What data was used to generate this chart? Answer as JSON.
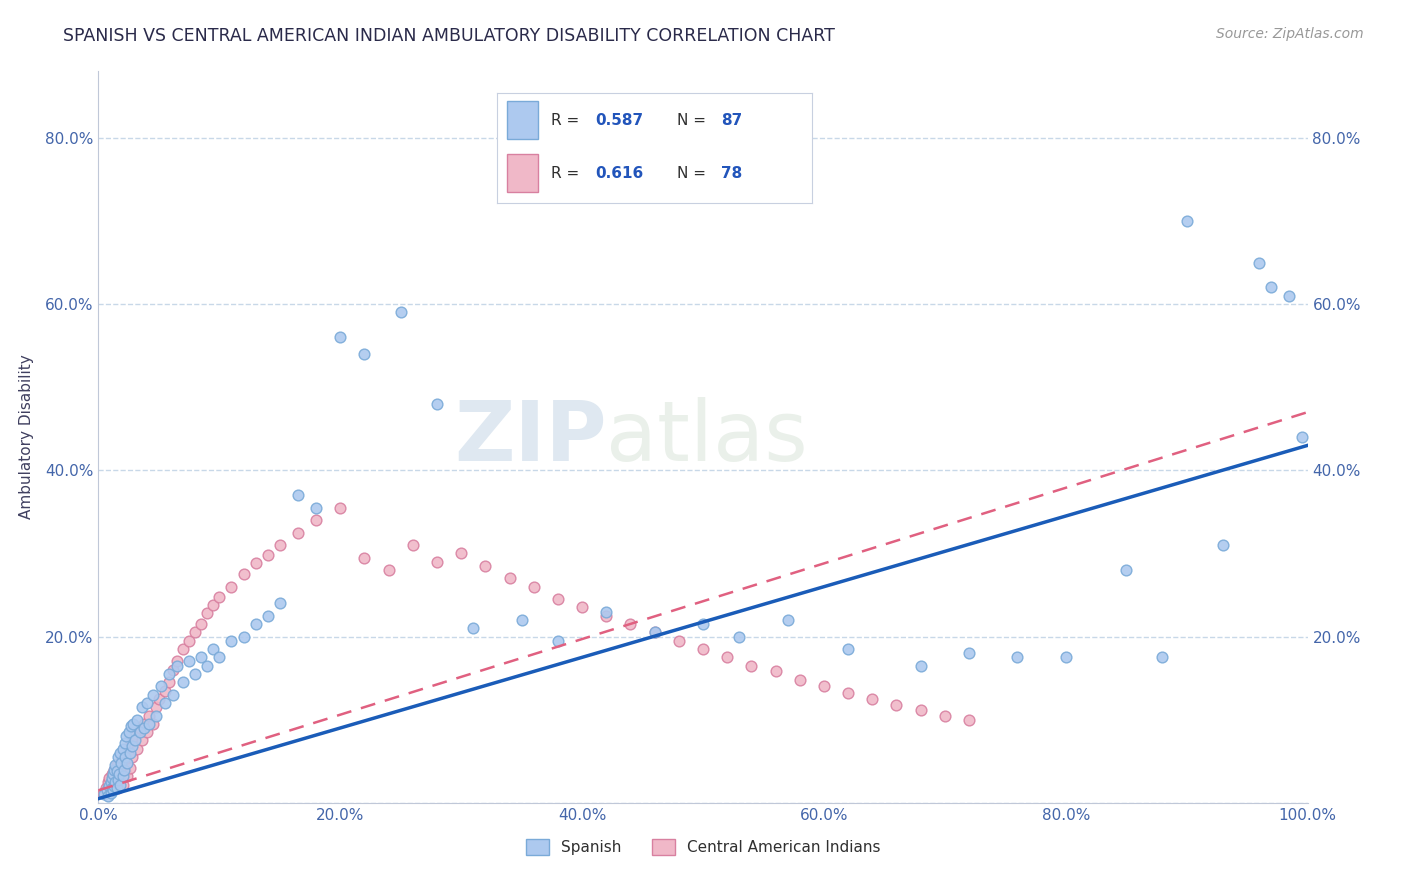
{
  "title": "SPANISH VS CENTRAL AMERICAN INDIAN AMBULATORY DISABILITY CORRELATION CHART",
  "source": "Source: ZipAtlas.com",
  "ylabel": "Ambulatory Disability",
  "xlim": [
    0.0,
    1.0
  ],
  "ylim": [
    0.0,
    0.88
  ],
  "xticks": [
    0.0,
    0.2,
    0.4,
    0.6,
    0.8,
    1.0
  ],
  "yticks": [
    0.0,
    0.2,
    0.4,
    0.6,
    0.8
  ],
  "xtick_labels": [
    "0.0%",
    "20.0%",
    "40.0%",
    "60.0%",
    "80.0%",
    "100.0%"
  ],
  "ytick_labels": [
    "",
    "20.0%",
    "40.0%",
    "60.0%",
    "80.0%"
  ],
  "background_color": "#ffffff",
  "grid_color": "#c8d8e8",
  "title_color": "#2a2a4a",
  "source_color": "#999999",
  "blue_scatter_color": "#adc9ef",
  "blue_edge_color": "#7aaad8",
  "pink_scatter_color": "#f0b8c8",
  "pink_edge_color": "#d880a0",
  "blue_line_color": "#1a5cb8",
  "pink_line_color": "#e06080",
  "scatter_size": 60,
  "R_blue": "0.587",
  "N_blue": "87",
  "R_pink": "0.616",
  "N_pink": "78",
  "blue_points_x": [
    0.005,
    0.007,
    0.008,
    0.009,
    0.01,
    0.01,
    0.011,
    0.011,
    0.012,
    0.012,
    0.013,
    0.013,
    0.014,
    0.014,
    0.015,
    0.015,
    0.016,
    0.016,
    0.017,
    0.018,
    0.018,
    0.019,
    0.02,
    0.02,
    0.021,
    0.022,
    0.022,
    0.023,
    0.024,
    0.025,
    0.026,
    0.027,
    0.028,
    0.029,
    0.03,
    0.032,
    0.034,
    0.036,
    0.038,
    0.04,
    0.042,
    0.045,
    0.048,
    0.052,
    0.055,
    0.058,
    0.062,
    0.065,
    0.07,
    0.075,
    0.08,
    0.085,
    0.09,
    0.095,
    0.1,
    0.11,
    0.12,
    0.13,
    0.14,
    0.15,
    0.165,
    0.18,
    0.2,
    0.22,
    0.25,
    0.28,
    0.31,
    0.35,
    0.38,
    0.42,
    0.46,
    0.5,
    0.53,
    0.57,
    0.62,
    0.68,
    0.72,
    0.76,
    0.8,
    0.85,
    0.88,
    0.9,
    0.93,
    0.96,
    0.97,
    0.985,
    0.995
  ],
  "blue_points_y": [
    0.01,
    0.015,
    0.008,
    0.02,
    0.012,
    0.025,
    0.018,
    0.03,
    0.015,
    0.035,
    0.02,
    0.04,
    0.025,
    0.045,
    0.018,
    0.038,
    0.028,
    0.055,
    0.035,
    0.06,
    0.022,
    0.048,
    0.032,
    0.065,
    0.04,
    0.072,
    0.055,
    0.08,
    0.048,
    0.085,
    0.06,
    0.092,
    0.068,
    0.095,
    0.075,
    0.1,
    0.085,
    0.115,
    0.09,
    0.12,
    0.095,
    0.13,
    0.105,
    0.14,
    0.12,
    0.155,
    0.13,
    0.165,
    0.145,
    0.17,
    0.155,
    0.175,
    0.165,
    0.185,
    0.175,
    0.195,
    0.2,
    0.215,
    0.225,
    0.24,
    0.37,
    0.355,
    0.56,
    0.54,
    0.59,
    0.48,
    0.21,
    0.22,
    0.195,
    0.23,
    0.205,
    0.215,
    0.2,
    0.22,
    0.185,
    0.165,
    0.18,
    0.175,
    0.175,
    0.28,
    0.175,
    0.7,
    0.31,
    0.65,
    0.62,
    0.61,
    0.44
  ],
  "pink_points_x": [
    0.004,
    0.006,
    0.008,
    0.009,
    0.01,
    0.011,
    0.012,
    0.013,
    0.014,
    0.015,
    0.016,
    0.017,
    0.018,
    0.019,
    0.02,
    0.021,
    0.022,
    0.023,
    0.024,
    0.025,
    0.026,
    0.027,
    0.028,
    0.03,
    0.032,
    0.034,
    0.036,
    0.038,
    0.04,
    0.042,
    0.045,
    0.048,
    0.05,
    0.055,
    0.058,
    0.062,
    0.065,
    0.07,
    0.075,
    0.08,
    0.085,
    0.09,
    0.095,
    0.1,
    0.11,
    0.12,
    0.13,
    0.14,
    0.15,
    0.165,
    0.18,
    0.2,
    0.22,
    0.24,
    0.26,
    0.28,
    0.3,
    0.32,
    0.34,
    0.36,
    0.38,
    0.4,
    0.42,
    0.44,
    0.46,
    0.48,
    0.5,
    0.52,
    0.54,
    0.56,
    0.58,
    0.6,
    0.62,
    0.64,
    0.66,
    0.68,
    0.7,
    0.72
  ],
  "pink_points_y": [
    0.012,
    0.018,
    0.025,
    0.03,
    0.02,
    0.035,
    0.025,
    0.04,
    0.03,
    0.045,
    0.018,
    0.038,
    0.028,
    0.05,
    0.022,
    0.048,
    0.038,
    0.058,
    0.032,
    0.065,
    0.042,
    0.072,
    0.055,
    0.08,
    0.065,
    0.09,
    0.075,
    0.095,
    0.085,
    0.105,
    0.095,
    0.115,
    0.125,
    0.135,
    0.145,
    0.16,
    0.17,
    0.185,
    0.195,
    0.205,
    0.215,
    0.228,
    0.238,
    0.248,
    0.26,
    0.275,
    0.288,
    0.298,
    0.31,
    0.325,
    0.34,
    0.355,
    0.295,
    0.28,
    0.31,
    0.29,
    0.3,
    0.285,
    0.27,
    0.26,
    0.245,
    0.235,
    0.225,
    0.215,
    0.205,
    0.195,
    0.185,
    0.175,
    0.165,
    0.158,
    0.148,
    0.14,
    0.132,
    0.125,
    0.118,
    0.112,
    0.105,
    0.1
  ]
}
